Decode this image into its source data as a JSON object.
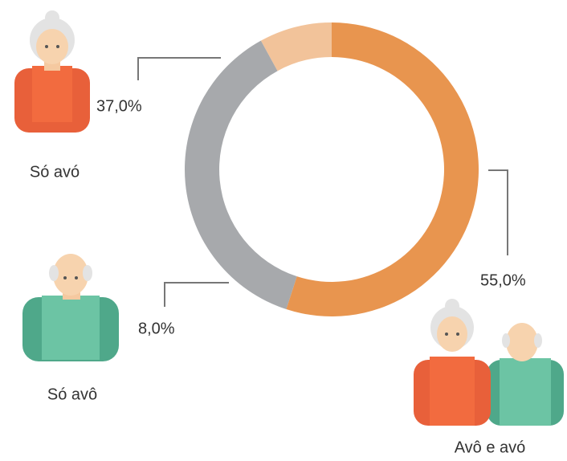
{
  "chart_data": {
    "type": "donut",
    "categories": [
      "Avô e avó",
      "Só avó",
      "Só avô"
    ],
    "values": [
      55,
      37,
      8
    ],
    "value_labels": [
      "55,0%",
      "37,0%",
      "8,0%"
    ],
    "colors": [
      "#e8954f",
      "#a7a9ac",
      "#f2c39a"
    ]
  }
}
